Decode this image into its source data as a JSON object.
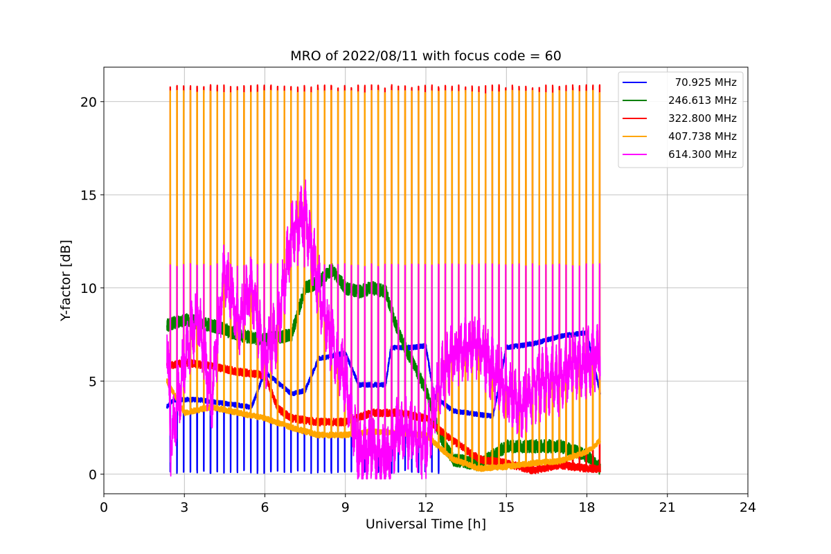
{
  "chart_data": {
    "type": "line",
    "title": "MRO of 2022/08/11 with focus code = 60",
    "xlabel": "Universal Time [h]",
    "ylabel": "Y-factor [dB]",
    "xlim": [
      0,
      24
    ],
    "ylim": [
      -1.05,
      21.85
    ],
    "xticks": [
      0,
      3,
      6,
      9,
      12,
      15,
      18,
      21,
      24
    ],
    "xtick_labels": [
      "0",
      "3",
      "6",
      "9",
      "12",
      "15",
      "18",
      "21",
      "24"
    ],
    "yticks": [
      0,
      5,
      10,
      15,
      20
    ],
    "ytick_labels": [
      "0",
      "5",
      "10",
      "15",
      "20"
    ],
    "grid": true,
    "legend_position": "top-right",
    "cycle_period_h": 0.25,
    "time_range": [
      2.35,
      18.5
    ],
    "series": [
      {
        "name": "70.925 MHz",
        "color": "#0000ff",
        "baseline": [
          [
            2.35,
            3.6
          ],
          [
            2.6,
            4.0
          ],
          [
            3.5,
            4.0
          ],
          [
            4.5,
            3.8
          ],
          [
            5.0,
            3.7
          ],
          [
            5.5,
            3.6
          ],
          [
            6.0,
            5.5
          ],
          [
            7.0,
            4.3
          ],
          [
            7.5,
            4.5
          ],
          [
            8.0,
            6.2
          ],
          [
            9.0,
            6.5
          ],
          [
            9.5,
            4.8
          ],
          [
            10.5,
            4.8
          ],
          [
            10.7,
            6.8
          ],
          [
            11.5,
            6.8
          ],
          [
            12.0,
            6.9
          ],
          [
            12.3,
            4.2
          ],
          [
            13.0,
            3.4
          ],
          [
            14.0,
            3.2
          ],
          [
            14.5,
            3.1
          ],
          [
            15.0,
            6.8
          ],
          [
            16.0,
            7.0
          ],
          [
            17.0,
            7.4
          ],
          [
            18.0,
            7.6
          ],
          [
            18.5,
            4.3
          ]
        ],
        "spike_value": 0.15,
        "spike_end": 12.5
      },
      {
        "name": "246.613 MHz",
        "color": "#008000",
        "baseline": [
          [
            2.35,
            8.0
          ],
          [
            3.0,
            8.3
          ],
          [
            4.0,
            8.0
          ],
          [
            5.0,
            7.5
          ],
          [
            6.0,
            7.2
          ],
          [
            7.0,
            7.5
          ],
          [
            7.5,
            10.0
          ],
          [
            8.0,
            10.3
          ],
          [
            8.5,
            11.0
          ],
          [
            9.0,
            10.0
          ],
          [
            9.5,
            9.8
          ],
          [
            10.0,
            10.0
          ],
          [
            10.5,
            9.8
          ],
          [
            11.0,
            7.5
          ],
          [
            12.0,
            4.5
          ],
          [
            12.5,
            2.2
          ],
          [
            13.0,
            0.8
          ],
          [
            14.0,
            0.5
          ],
          [
            15.0,
            1.5
          ],
          [
            16.0,
            1.5
          ],
          [
            17.0,
            1.5
          ],
          [
            18.0,
            1.0
          ],
          [
            18.5,
            0.3
          ]
        ]
      },
      {
        "name": "322.800 MHz",
        "color": "#ff0000",
        "baseline": [
          [
            2.35,
            5.8
          ],
          [
            3.0,
            6.0
          ],
          [
            4.0,
            5.8
          ],
          [
            5.0,
            5.5
          ],
          [
            6.0,
            5.3
          ],
          [
            6.5,
            3.5
          ],
          [
            7.0,
            3.0
          ],
          [
            8.0,
            2.8
          ],
          [
            9.0,
            2.8
          ],
          [
            10.0,
            3.3
          ],
          [
            11.0,
            3.3
          ],
          [
            12.0,
            3.0
          ],
          [
            13.0,
            1.8
          ],
          [
            14.0,
            0.8
          ],
          [
            15.0,
            0.6
          ],
          [
            16.0,
            0.2
          ],
          [
            17.0,
            0.5
          ],
          [
            18.0,
            0.3
          ],
          [
            18.5,
            0.3
          ]
        ],
        "spike_value": 20.8
      },
      {
        "name": "407.738 MHz",
        "color": "#ffa500",
        "baseline": [
          [
            2.35,
            5.0
          ],
          [
            3.0,
            3.3
          ],
          [
            4.0,
            3.6
          ],
          [
            5.0,
            3.3
          ],
          [
            6.0,
            3.0
          ],
          [
            7.0,
            2.5
          ],
          [
            8.0,
            2.1
          ],
          [
            9.0,
            2.1
          ],
          [
            10.0,
            2.3
          ],
          [
            11.0,
            2.2
          ],
          [
            12.0,
            2.1
          ],
          [
            13.0,
            0.8
          ],
          [
            14.0,
            0.3
          ],
          [
            15.0,
            0.4
          ],
          [
            16.0,
            0.6
          ],
          [
            17.0,
            0.7
          ],
          [
            18.0,
            1.2
          ],
          [
            18.5,
            1.8
          ]
        ],
        "spike_value": 20.5
      },
      {
        "name": "614.300 MHz",
        "color": "#ff00ff",
        "baseline": [
          [
            2.35,
            7.5
          ],
          [
            2.5,
            1.5
          ],
          [
            3.0,
            6.0
          ],
          [
            3.5,
            8.5
          ],
          [
            4.0,
            4.0
          ],
          [
            4.5,
            11.0
          ],
          [
            5.0,
            8.0
          ],
          [
            5.5,
            10.0
          ],
          [
            6.0,
            6.0
          ],
          [
            6.5,
            8.0
          ],
          [
            7.0,
            13.0
          ],
          [
            7.5,
            14.0
          ],
          [
            8.0,
            10.0
          ],
          [
            8.5,
            7.0
          ],
          [
            9.0,
            5.0
          ],
          [
            9.5,
            1.0
          ],
          [
            10.0,
            1.5
          ],
          [
            10.5,
            0.5
          ],
          [
            11.0,
            2.5
          ],
          [
            11.5,
            2.0
          ],
          [
            12.0,
            1.5
          ],
          [
            12.5,
            5.0
          ],
          [
            13.0,
            6.5
          ],
          [
            14.0,
            7.0
          ],
          [
            14.5,
            5.5
          ],
          [
            15.0,
            4.5
          ],
          [
            15.5,
            3.5
          ],
          [
            16.0,
            4.5
          ],
          [
            16.5,
            5.0
          ],
          [
            17.0,
            5.0
          ],
          [
            17.5,
            6.0
          ],
          [
            18.0,
            6.0
          ],
          [
            18.5,
            6.5
          ]
        ],
        "spike_value": 11.2
      }
    ]
  }
}
